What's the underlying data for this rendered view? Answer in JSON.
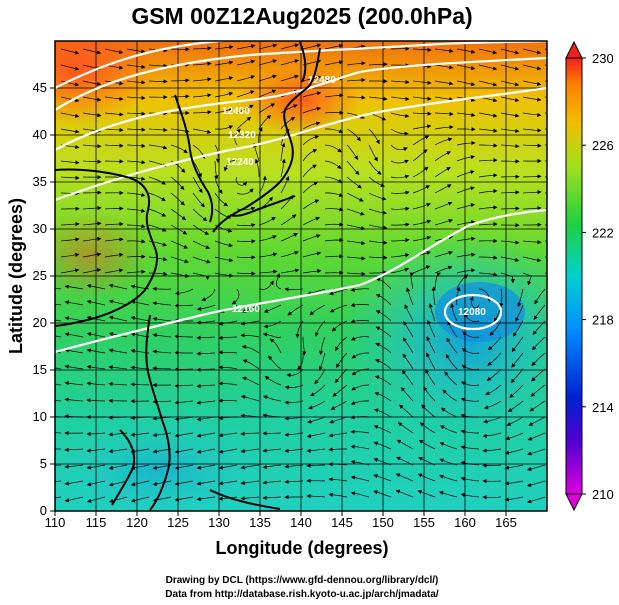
{
  "title": "GSM 00Z12Aug2025 (200.0hPa)",
  "axes": {
    "xlabel": "Longitude (degrees)",
    "ylabel": "Latitude  (degrees)",
    "x_ticks": [
      "110",
      "115",
      "120",
      "125",
      "130",
      "135",
      "140",
      "145",
      "150",
      "155",
      "160",
      "165"
    ],
    "y_ticks": [
      "0",
      "5",
      "10",
      "15",
      "20",
      "25",
      "30",
      "35",
      "40",
      "45"
    ],
    "xlim": [
      110,
      170
    ],
    "ylim": [
      0,
      50
    ]
  },
  "colorbar": {
    "ticks": [
      "230",
      "226",
      "222",
      "218",
      "214",
      "210"
    ],
    "range": [
      210,
      230
    ],
    "colors": [
      "#dd00dd",
      "#0000cc",
      "#00a0ff",
      "#00d8c0",
      "#20d040",
      "#a0e020",
      "#f0d000",
      "#ff9000",
      "#f02020"
    ]
  },
  "contour_labels": [
    "12480",
    "12400",
    "12320",
    "12240",
    "12160",
    "12080"
  ],
  "credits": {
    "line1": "Drawing by DCL (https://www.gfd-dennou.org/library/dcl/)",
    "line2": "Data from http://database.rish.kyoto-u.ac.jp/arch/jmadata/"
  }
}
